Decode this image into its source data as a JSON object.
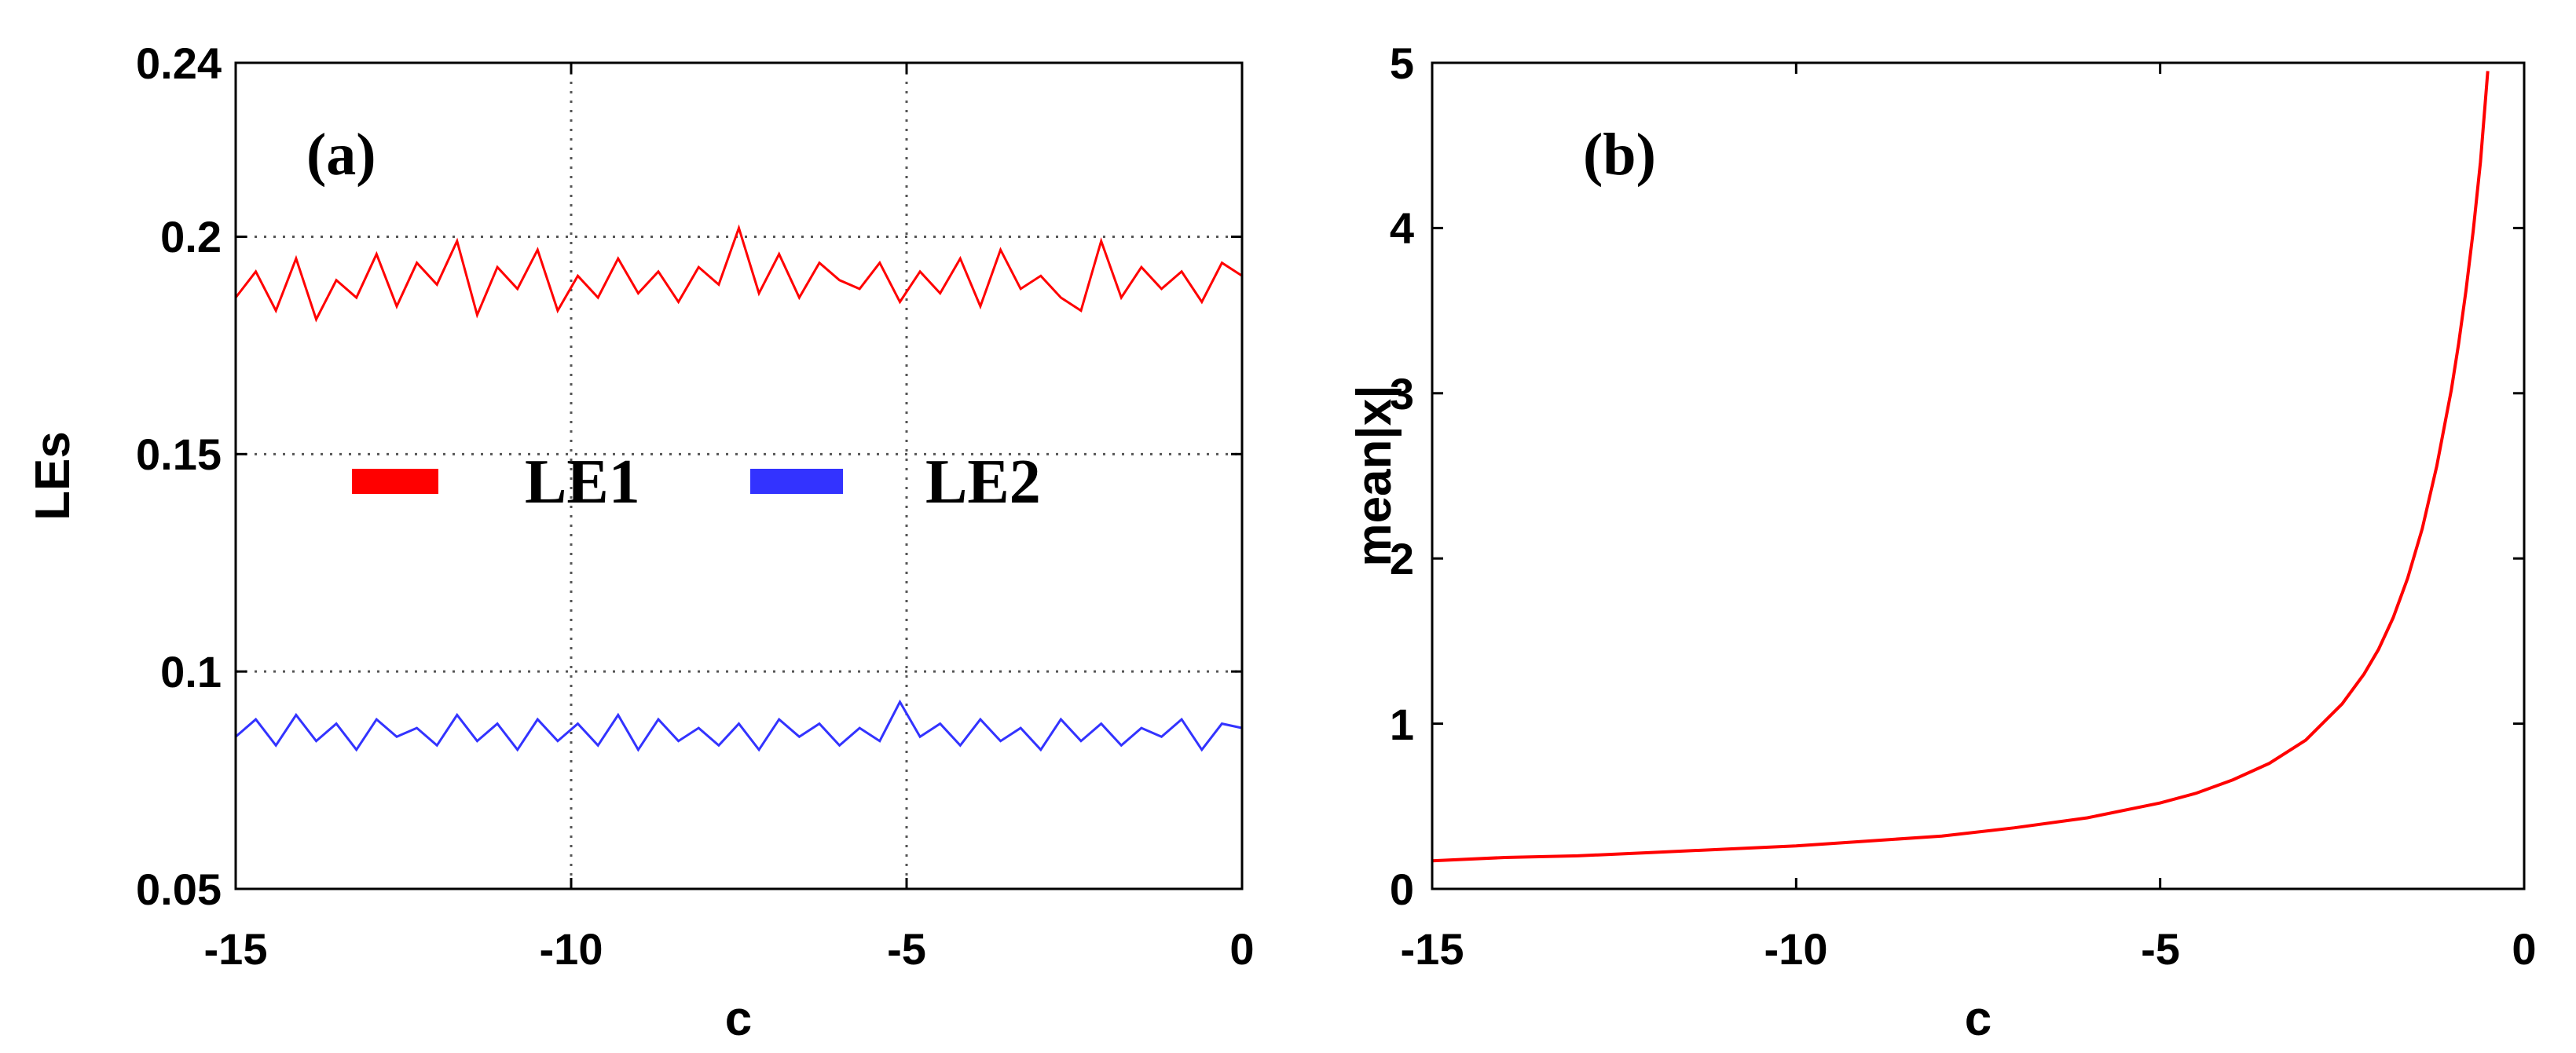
{
  "chart_data": [
    {
      "type": "line",
      "panel_label": "(a)",
      "xlabel": "c",
      "ylabel": "LEs",
      "xlim": [
        -15,
        0
      ],
      "ylim": [
        0.05,
        0.24
      ],
      "xticks": [
        -15,
        -10,
        -5,
        0
      ],
      "xtick_labels": [
        "-15",
        "-10",
        "-5",
        "0"
      ],
      "yticks": [
        0.05,
        0.1,
        0.15,
        0.2,
        0.24
      ],
      "ytick_labels": [
        "0.05",
        "0.1",
        "0.15",
        "0.2",
        "0.24"
      ],
      "grid": true,
      "legend_position": "center",
      "x": [
        -15.0,
        -14.7,
        -14.4,
        -14.1,
        -13.8,
        -13.5,
        -13.2,
        -12.9,
        -12.6,
        -12.3,
        -12.0,
        -11.7,
        -11.4,
        -11.1,
        -10.8,
        -10.5,
        -10.2,
        -9.9,
        -9.6,
        -9.3,
        -9.0,
        -8.7,
        -8.4,
        -8.1,
        -7.8,
        -7.5,
        -7.2,
        -6.9,
        -6.6,
        -6.3,
        -6.0,
        -5.7,
        -5.4,
        -5.1,
        -4.8,
        -4.5,
        -4.2,
        -3.9,
        -3.6,
        -3.3,
        -3.0,
        -2.7,
        -2.4,
        -2.1,
        -1.8,
        -1.5,
        -1.2,
        -0.9,
        -0.6,
        -0.3,
        0.0
      ],
      "series": [
        {
          "name": "LE1",
          "color": "#ff0000",
          "values": [
            0.186,
            0.192,
            0.183,
            0.195,
            0.181,
            0.19,
            0.186,
            0.196,
            0.184,
            0.194,
            0.189,
            0.199,
            0.182,
            0.193,
            0.188,
            0.197,
            0.183,
            0.191,
            0.186,
            0.195,
            0.187,
            0.192,
            0.185,
            0.193,
            0.189,
            0.202,
            0.187,
            0.196,
            0.186,
            0.194,
            0.19,
            0.188,
            0.194,
            0.185,
            0.192,
            0.187,
            0.195,
            0.184,
            0.197,
            0.188,
            0.191,
            0.186,
            0.183,
            0.199,
            0.186,
            0.193,
            0.188,
            0.192,
            0.185,
            0.194,
            0.191
          ]
        },
        {
          "name": "LE2",
          "color": "#3333ff",
          "values": [
            0.085,
            0.089,
            0.083,
            0.09,
            0.084,
            0.088,
            0.082,
            0.089,
            0.085,
            0.087,
            0.083,
            0.09,
            0.084,
            0.088,
            0.082,
            0.089,
            0.084,
            0.088,
            0.083,
            0.09,
            0.082,
            0.089,
            0.084,
            0.087,
            0.083,
            0.088,
            0.082,
            0.089,
            0.085,
            0.088,
            0.083,
            0.087,
            0.084,
            0.093,
            0.085,
            0.088,
            0.083,
            0.089,
            0.084,
            0.087,
            0.082,
            0.089,
            0.084,
            0.088,
            0.083,
            0.087,
            0.085,
            0.089,
            0.082,
            0.088,
            0.087
          ]
        }
      ]
    },
    {
      "type": "line",
      "panel_label": "(b)",
      "xlabel": "c",
      "ylabel": "mean|x|",
      "xlim": [
        -15,
        0
      ],
      "ylim": [
        0,
        5
      ],
      "xticks": [
        -15,
        -10,
        -5,
        0
      ],
      "xtick_labels": [
        "-15",
        "-10",
        "-5",
        "0"
      ],
      "yticks": [
        0,
        1,
        2,
        3,
        4,
        5
      ],
      "ytick_labels": [
        "0",
        "1",
        "2",
        "3",
        "4",
        "5"
      ],
      "grid": false,
      "series": [
        {
          "name": "mean|x|",
          "color": "#ff0000",
          "x": [
            -15.0,
            -14.0,
            -13.0,
            -12.0,
            -11.0,
            -10.0,
            -9.0,
            -8.0,
            -7.0,
            -6.0,
            -5.0,
            -4.5,
            -4.0,
            -3.5,
            -3.0,
            -2.5,
            -2.2,
            -2.0,
            -1.8,
            -1.6,
            -1.4,
            -1.2,
            -1.0,
            -0.9,
            -0.8,
            -0.7,
            -0.6,
            -0.5
          ],
          "values": [
            0.17,
            0.19,
            0.2,
            0.22,
            0.24,
            0.26,
            0.29,
            0.32,
            0.37,
            0.43,
            0.52,
            0.58,
            0.66,
            0.76,
            0.9,
            1.12,
            1.3,
            1.45,
            1.64,
            1.88,
            2.18,
            2.56,
            3.02,
            3.3,
            3.62,
            3.98,
            4.4,
            4.95
          ]
        }
      ]
    }
  ]
}
